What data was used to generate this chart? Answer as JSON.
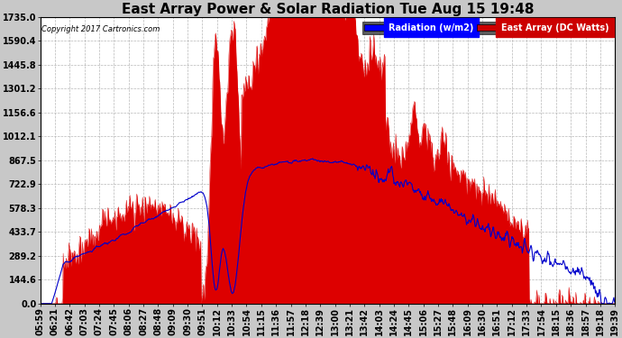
{
  "title": "East Array Power & Solar Radiation Tue Aug 15 19:48",
  "copyright": "Copyright 2017 Cartronics.com",
  "legend_labels": [
    "Radiation (w/m2)",
    "East Array (DC Watts)"
  ],
  "legend_colors": [
    "#0000ff",
    "#cc0000"
  ],
  "legend_bg_colors": [
    "#0000ff",
    "#cc0000"
  ],
  "legend_text_colors": [
    "#ffffff",
    "#ffffff"
  ],
  "y_ticks": [
    0.0,
    144.6,
    289.2,
    433.7,
    578.3,
    722.9,
    867.5,
    1012.1,
    1156.6,
    1301.2,
    1445.8,
    1590.4,
    1735.0
  ],
  "ylim": [
    0.0,
    1820.0
  ],
  "x_labels": [
    "05:59",
    "06:21",
    "06:42",
    "07:03",
    "07:24",
    "07:45",
    "08:06",
    "08:27",
    "08:48",
    "09:09",
    "09:30",
    "09:51",
    "10:12",
    "10:33",
    "10:54",
    "11:15",
    "11:36",
    "11:57",
    "12:18",
    "12:39",
    "13:00",
    "13:21",
    "13:42",
    "14:03",
    "14:24",
    "14:45",
    "15:06",
    "15:27",
    "15:48",
    "16:09",
    "16:30",
    "16:51",
    "17:12",
    "17:33",
    "17:54",
    "18:15",
    "18:36",
    "18:57",
    "19:18",
    "19:39"
  ],
  "background_color": "#c8c8c8",
  "plot_bg_color": "#ffffff",
  "grid_color": "#b0b0b0",
  "title_fontsize": 11,
  "axis_fontsize": 7,
  "red_color": "#dd0000",
  "blue_color": "#0000cc"
}
